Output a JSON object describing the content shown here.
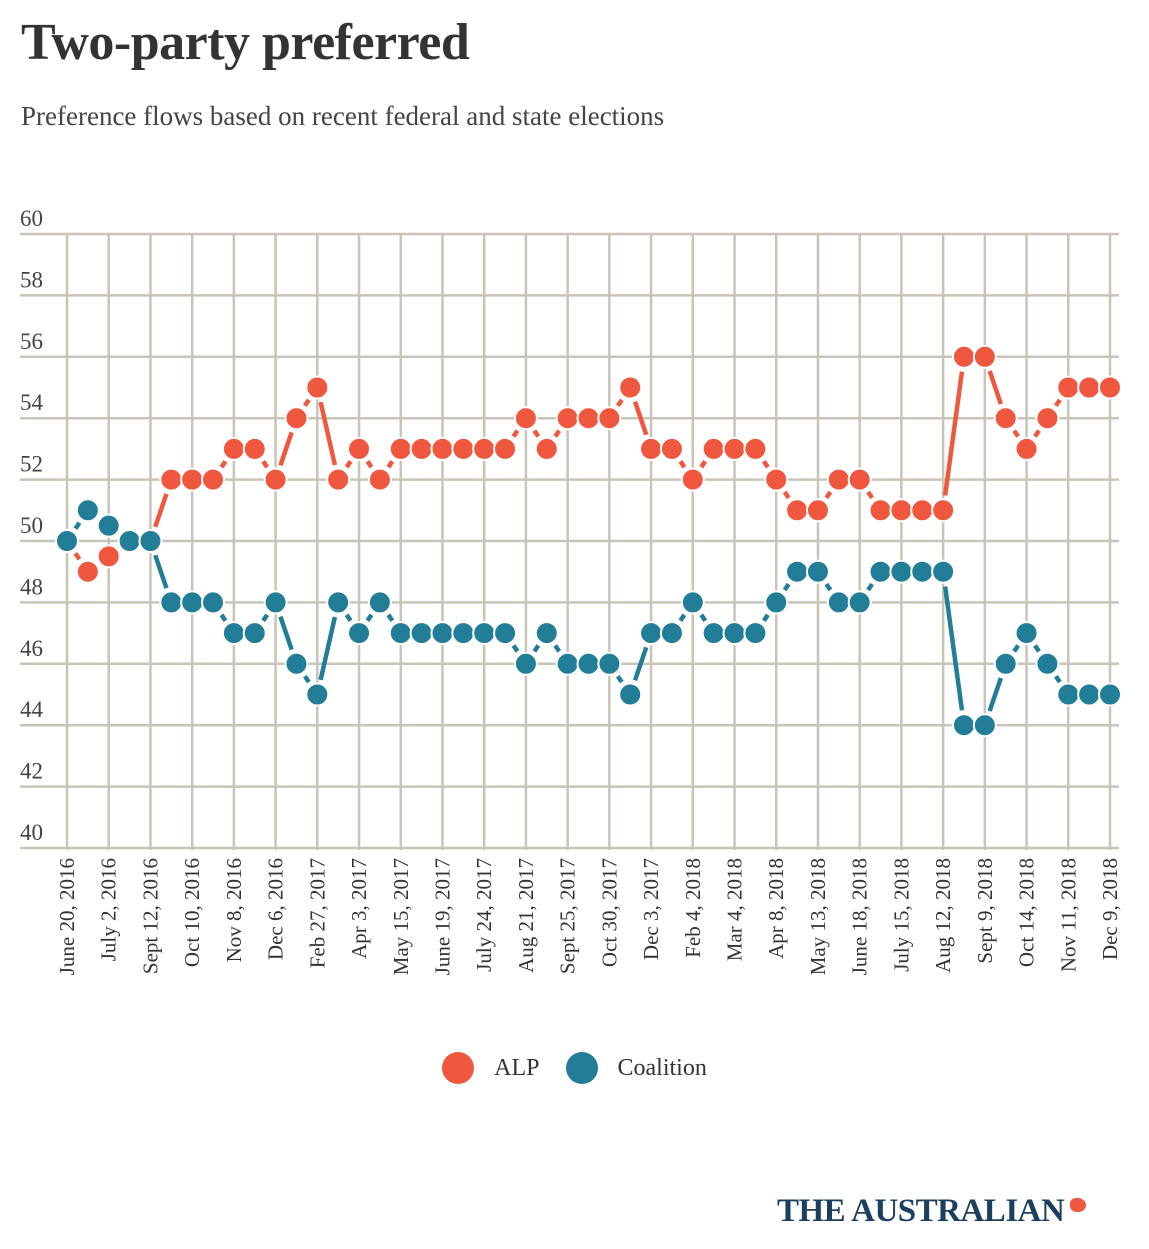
{
  "header": {
    "title": "Two-party preferred",
    "subtitle": "Preference flows based on recent federal and state elections"
  },
  "branding": {
    "logo_text": "THE AUSTRALIAN",
    "logo_icon": "australia-map-icon"
  },
  "colors": {
    "alp": "#f0573f",
    "coalition": "#227d97",
    "grid": "#c8c4b8",
    "text": "#333333"
  },
  "legend": [
    {
      "label": "ALP",
      "color": "#f0573f"
    },
    {
      "label": "Coalition",
      "color": "#227d97"
    }
  ],
  "chart_data": {
    "type": "line",
    "title": "Two-party preferred",
    "subtitle": "Preference flows based on recent federal and state elections",
    "xlabel": "",
    "ylabel": "",
    "ylim": [
      40,
      60
    ],
    "yticks": [
      40,
      42,
      44,
      46,
      48,
      50,
      52,
      54,
      56,
      58,
      60
    ],
    "grid": true,
    "legend_position": "bottom-center",
    "xtick_labels": [
      "June 20, 2016",
      "July 2, 2016",
      "Sept 12, 2016",
      "Oct 10, 2016",
      "Nov 8, 2016",
      "Dec 6, 2016",
      "Feb 27, 2017",
      "Apr 3, 2017",
      "May 15, 2017",
      "June 19, 2017",
      "July 24, 2017",
      "Aug 21, 2017",
      "Sept 25, 2017",
      "Oct 30, 2017",
      "Dec 3, 2017",
      "Feb 4, 2018",
      "Mar 4, 2018",
      "Apr 8, 2018",
      "May 13, 2018",
      "June 18, 2018",
      "July 15, 2018",
      "Aug 12, 2018",
      "Sept 9, 2018",
      "Oct 14, 2018",
      "Nov 11, 2018",
      "Dec 9, 2018"
    ],
    "point_count": 51,
    "series": [
      {
        "name": "ALP",
        "color": "#f0573f",
        "values": [
          50,
          49,
          49.5,
          50,
          50,
          52,
          52,
          52,
          53,
          53,
          52,
          54,
          55,
          52,
          53,
          52,
          53,
          53,
          53,
          53,
          53,
          53,
          54,
          53,
          54,
          54,
          54,
          55,
          53,
          53,
          52,
          53,
          53,
          53,
          52,
          51,
          51,
          52,
          52,
          51,
          51,
          51,
          51,
          56,
          56,
          54,
          53,
          54,
          55,
          55,
          55
        ]
      },
      {
        "name": "Coalition",
        "color": "#227d97",
        "values": [
          50,
          51,
          50.5,
          50,
          50,
          48,
          48,
          48,
          47,
          47,
          48,
          46,
          45,
          48,
          47,
          48,
          47,
          47,
          47,
          47,
          47,
          47,
          46,
          47,
          46,
          46,
          46,
          45,
          47,
          47,
          48,
          47,
          47,
          47,
          48,
          49,
          49,
          48,
          48,
          49,
          49,
          49,
          49,
          44,
          44,
          46,
          47,
          46,
          45,
          45,
          45
        ]
      }
    ]
  }
}
